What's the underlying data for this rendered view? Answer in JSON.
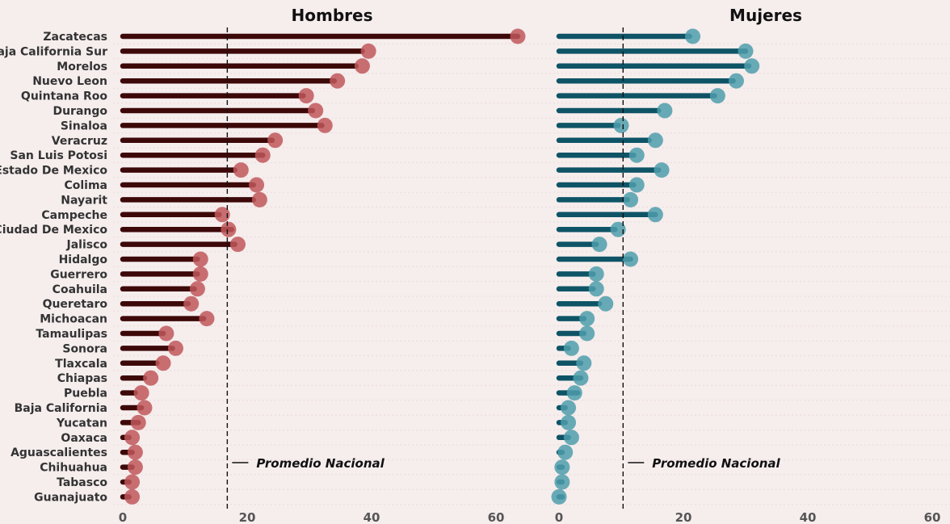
{
  "chart_data": {
    "type": "lollipop",
    "states": [
      "Zacatecas",
      "Baja California Sur",
      "Morelos",
      "Nuevo Leon",
      "Quintana Roo",
      "Durango",
      "Sinaloa",
      "Veracruz",
      "San Luis Potosi",
      "Estado De Mexico",
      "Colima",
      "Nayarit",
      "Campeche",
      "Ciudad De Mexico",
      "Jalisco",
      "Hidalgo",
      "Guerrero",
      "Coahuila",
      "Queretaro",
      "Michoacan",
      "Tamaulipas",
      "Sonora",
      "Tlaxcala",
      "Chiapas",
      "Puebla",
      "Baja California",
      "Yucatan",
      "Oaxaca",
      "Aguascalientes",
      "Chihuahua",
      "Tabasco",
      "Guanajuato"
    ],
    "panels": [
      {
        "title": "Hombres",
        "xlim": [
          0,
          60
        ],
        "ticks": [
          "0",
          "20",
          "40",
          "60"
        ],
        "bar_color": "#3d0808",
        "dot_color": "#c0575a",
        "reference": {
          "value": 16.8,
          "label": "Promedio Nacional"
        },
        "bar_values": [
          63.5,
          38.5,
          37.5,
          34,
          29,
          30.5,
          32,
          24,
          22.5,
          18,
          21,
          21,
          15.5,
          17.5,
          18,
          12,
          12,
          11.5,
          10.5,
          13,
          6.5,
          8,
          5.5,
          3.5,
          2,
          3,
          2.5,
          1,
          1.5,
          1.5,
          1,
          1
        ],
        "dot_values": [
          63.5,
          39.5,
          38.5,
          34.5,
          29.5,
          31,
          32.5,
          24.5,
          22.5,
          19,
          21.5,
          22,
          16,
          17,
          18.5,
          12.5,
          12.5,
          12,
          11,
          13.5,
          7,
          8.5,
          6.5,
          4.5,
          3,
          3.5,
          2.5,
          1.5,
          2,
          2,
          1.5,
          1.5
        ]
      },
      {
        "title": "Mujeres",
        "xlim": [
          0,
          60
        ],
        "ticks": [
          "0",
          "20",
          "40",
          "60"
        ],
        "bar_color": "#0e5466",
        "dot_color": "#4d9dac",
        "reference": {
          "value": 10.3,
          "label": "Promedio Nacional"
        },
        "bar_values": [
          21,
          30,
          30.5,
          28,
          25,
          16,
          9.5,
          14.5,
          12,
          16,
          12,
          11,
          15.5,
          9,
          6,
          11.5,
          5.5,
          5.5,
          6.5,
          4,
          4,
          1.5,
          3.5,
          3.5,
          3,
          1,
          1,
          1.5,
          0.5,
          0.5,
          0.5,
          0.5
        ],
        "dot_values": [
          21.5,
          30,
          31,
          28.5,
          25.5,
          17,
          10,
          15.5,
          12.5,
          16.5,
          12.5,
          11.5,
          15.5,
          9.5,
          6.5,
          11.5,
          6,
          6,
          7.5,
          4.5,
          4.5,
          2,
          4,
          3.5,
          2.5,
          1.5,
          1.5,
          2,
          1,
          0.5,
          0.5,
          0
        ]
      }
    ]
  }
}
